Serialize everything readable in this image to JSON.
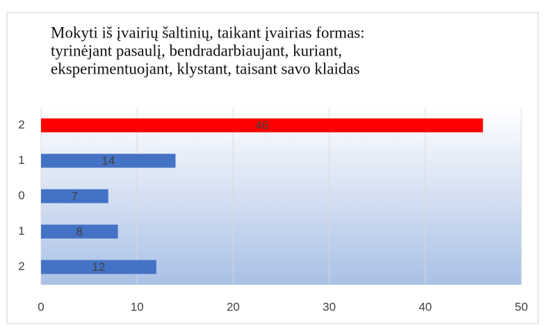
{
  "chart_data": {
    "type": "barh",
    "title": [
      "Mokyti iš įvairių šaltinių, taikant įvairias formas:",
      "tyrinėjant pasaulį, bendradarbiaujant, kuriant,",
      "eksperimentuojant, klystant, taisant savo klaidas"
    ],
    "categories": [
      "2",
      "1",
      "0",
      "1",
      "2"
    ],
    "values": [
      46,
      14,
      7,
      8,
      12
    ],
    "colors": [
      "#ff0000",
      "#4472c4",
      "#4472c4",
      "#4472c4",
      "#4472c4"
    ],
    "xlim": [
      0,
      50
    ],
    "xticks": [
      0,
      10,
      20,
      30,
      40,
      50
    ],
    "grid": true
  }
}
